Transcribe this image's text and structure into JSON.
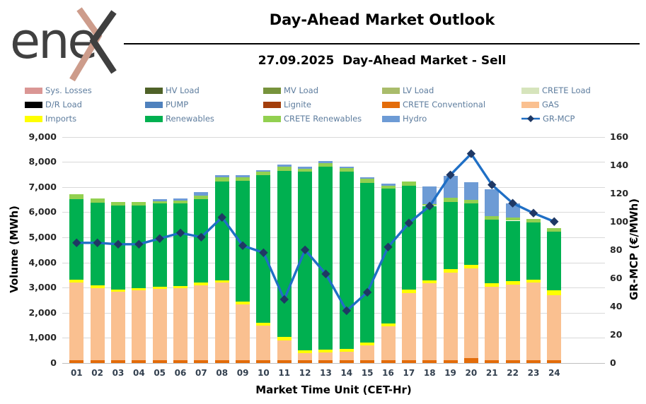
{
  "header": {
    "logo_text": "ene",
    "logo_mark": "x-chevrons",
    "title": "Day-Ahead Market Outlook",
    "subtitle": "27.09.2025  Day-Ahead Market - Sell"
  },
  "colors": {
    "grid": "#D9D9D9",
    "axis_line": "#BFBFBF",
    "legend_text": "#5E7D9E",
    "logo_text": "#404040",
    "logo_accent": "#CD9C8B"
  },
  "legend": {
    "items": [
      {
        "label": "Sys. Losses",
        "color": "#DA9694",
        "type": "box"
      },
      {
        "label": "HV Load",
        "color": "#4F6228",
        "type": "box"
      },
      {
        "label": "MV Load",
        "color": "#77933C",
        "type": "box"
      },
      {
        "label": "LV Load",
        "color": "#A9BC6B",
        "type": "box"
      },
      {
        "label": "CRETE Load",
        "color": "#D6E4BC",
        "type": "box"
      },
      {
        "label": "D/R Load",
        "color": "#000000",
        "type": "box"
      },
      {
        "label": "PUMP",
        "color": "#4F81BD",
        "type": "box"
      },
      {
        "label": "Lignite",
        "color": "#A33E0B",
        "type": "box"
      },
      {
        "label": "CRETE Conventional",
        "color": "#E36C0A",
        "type": "box"
      },
      {
        "label": "GAS",
        "color": "#FAC090",
        "type": "box"
      },
      {
        "label": "Imports",
        "color": "#FFFF00",
        "type": "box"
      },
      {
        "label": "Renewables",
        "color": "#00B050",
        "type": "box"
      },
      {
        "label": "CRETE Renewables",
        "color": "#92D050",
        "type": "box"
      },
      {
        "label": "Hydro",
        "color": "#6D9BD5",
        "type": "box"
      },
      {
        "label": "GR-MCP",
        "color": "#1F6FC5",
        "marker": "#1F3864",
        "type": "line"
      }
    ]
  },
  "chart_data": {
    "type": "bar",
    "subtype": "stacked-bars-with-line",
    "grid": true,
    "legend_position": "top",
    "categories": [
      "01",
      "02",
      "03",
      "04",
      "05",
      "06",
      "07",
      "08",
      "09",
      "10",
      "11",
      "12",
      "13",
      "14",
      "15",
      "16",
      "17",
      "18",
      "19",
      "20",
      "21",
      "22",
      "23",
      "24"
    ],
    "x_axis_title": "Market Time Unit (CET-Hr)",
    "y_left": {
      "title": "Volume (MWh)",
      "min": 0,
      "max": 9000,
      "step": 1000
    },
    "y_right": {
      "title": "GR-MCP (€/MWh)",
      "min": 0,
      "max": 160,
      "step": 20
    },
    "bar_series": [
      {
        "name": "CRETE Conventional",
        "color": "#E36C0A",
        "values": [
          100,
          100,
          100,
          100,
          100,
          100,
          100,
          100,
          100,
          100,
          100,
          100,
          100,
          100,
          100,
          100,
          100,
          100,
          100,
          200,
          100,
          100,
          100,
          100
        ]
      },
      {
        "name": "GAS",
        "color": "#FAC090",
        "values": [
          3100,
          2880,
          2740,
          2790,
          2850,
          2880,
          3000,
          3100,
          2230,
          1380,
          810,
          290,
          320,
          340,
          590,
          1350,
          2690,
          3080,
          3500,
          3570,
          2940,
          3020,
          3090,
          2590
        ]
      },
      {
        "name": "Imports",
        "color": "#FFFF00",
        "values": [
          115,
          110,
          80,
          90,
          85,
          80,
          100,
          100,
          120,
          120,
          120,
          120,
          120,
          130,
          125,
          120,
          120,
          120,
          140,
          130,
          130,
          130,
          120,
          190
        ]
      },
      {
        "name": "Renewables",
        "color": "#00B050",
        "values": [
          3205,
          3290,
          3345,
          3285,
          3315,
          3290,
          3310,
          3930,
          4790,
          5860,
          6620,
          7090,
          7260,
          7030,
          6335,
          5360,
          4130,
          2950,
          2670,
          2450,
          2520,
          2410,
          2280,
          2350
        ]
      },
      {
        "name": "CRETE Renewables",
        "color": "#92D050",
        "values": [
          195,
          165,
          140,
          140,
          85,
          110,
          140,
          150,
          150,
          160,
          150,
          130,
          150,
          140,
          180,
          130,
          190,
          80,
          150,
          130,
          140,
          140,
          140,
          140
        ]
      },
      {
        "name": "Hydro",
        "color": "#6D9BD5",
        "values": [
          0,
          0,
          0,
          0,
          85,
          85,
          160,
          90,
          70,
          60,
          90,
          80,
          80,
          70,
          70,
          80,
          0,
          700,
          880,
          710,
          1080,
          540,
          0,
          0
        ]
      }
    ],
    "line_series": {
      "name": "GR-MCP",
      "color": "#1F6FC5",
      "marker_color": "#1F3864",
      "values": [
        85,
        85,
        84,
        84,
        88,
        92,
        89,
        103,
        83,
        78,
        45,
        80,
        63,
        37,
        50,
        82,
        99,
        111,
        133,
        148,
        126,
        113,
        106,
        100
      ]
    }
  }
}
